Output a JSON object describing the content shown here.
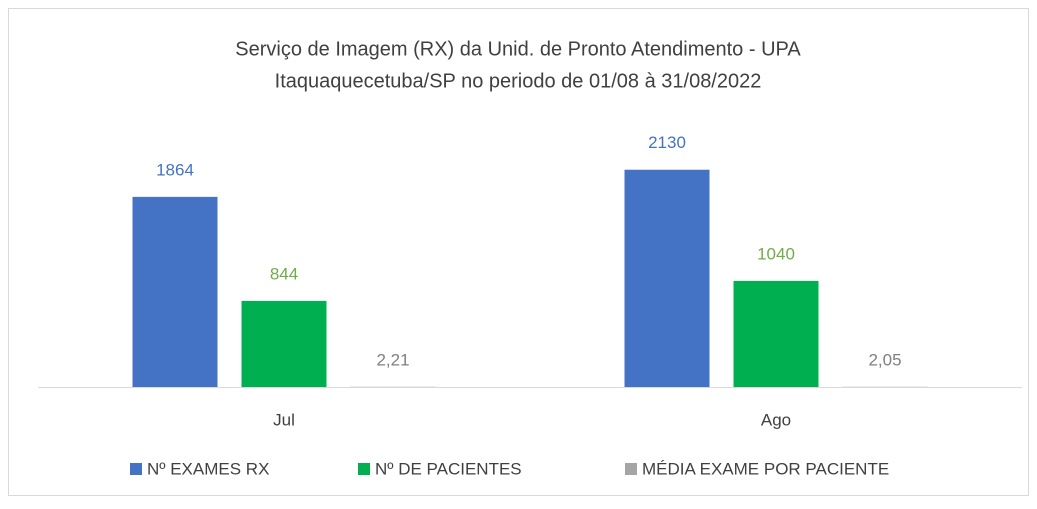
{
  "chart_data": {
    "type": "bar",
    "title": [
      "Serviço de Imagem (RX) da Unid. de Pronto Atendimento - UPA",
      "Itaquaquecetuba/SP no periodo de 01/08 à 31/08/2022"
    ],
    "categories": [
      "Jul",
      "Ago"
    ],
    "series": [
      {
        "name": "Nº EXAMES RX",
        "color": "#4472c4",
        "values": [
          1864,
          2130
        ]
      },
      {
        "name": "Nº DE PACIENTES",
        "color": "#00b050",
        "values": [
          844,
          1040
        ]
      },
      {
        "name": "MÉDIA EXAME POR PACIENTE",
        "color": "#a5a5a5",
        "values": [
          2.21,
          2.05
        ],
        "value_labels": [
          "2,21",
          "2,05"
        ]
      }
    ],
    "ylim": [
      0,
      2500
    ],
    "legend": "bottom"
  }
}
